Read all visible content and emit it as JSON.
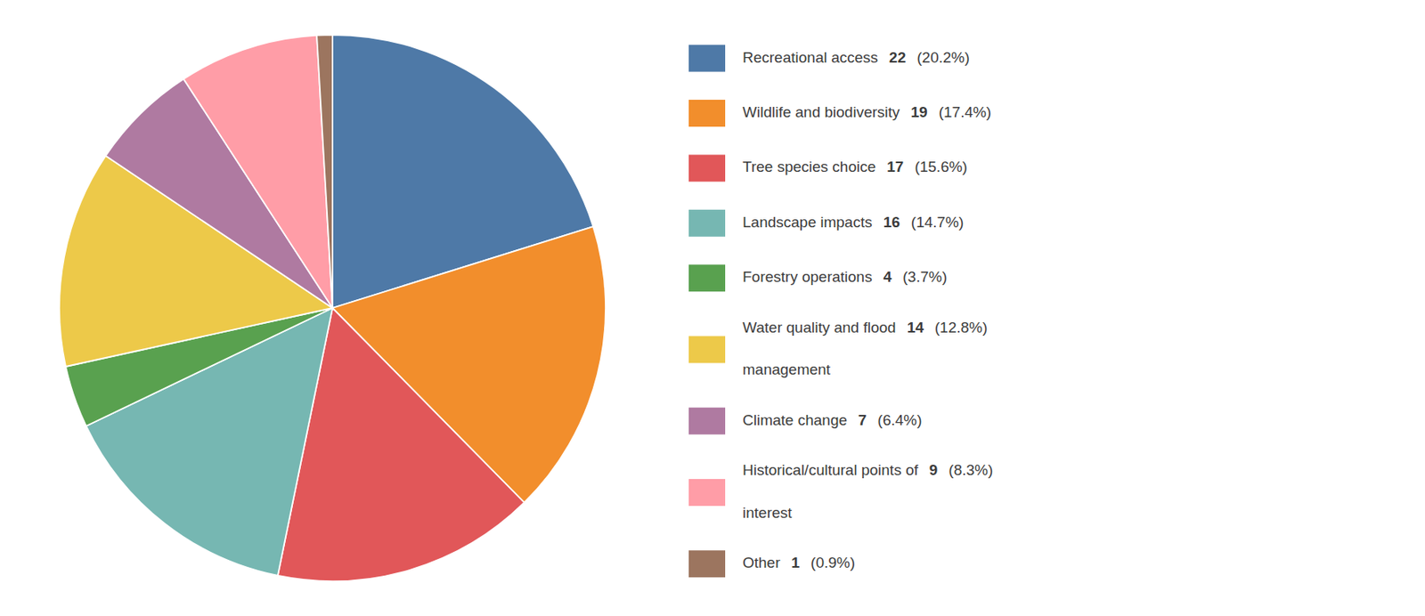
{
  "chart_data": {
    "type": "pie",
    "categories": [
      "Recreational access",
      "Wildlife and biodiversity",
      "Tree species choice",
      "Landscape impacts",
      "Forestry operations",
      "Water quality and flood\nmanagement",
      "Climate change",
      "Historical/cultural points of\ninterest",
      "Other"
    ],
    "values": [
      22,
      19,
      17,
      16,
      4,
      14,
      7,
      9,
      1
    ],
    "percentages": [
      20.2,
      17.4,
      15.6,
      14.7,
      3.7,
      12.8,
      6.4,
      8.3,
      0.9
    ],
    "percentage_labels": [
      "(20.2%)",
      "(17.4%)",
      "(15.6%)",
      "(14.7%)",
      "(3.7%)",
      "(12.8%)",
      "(6.4%)",
      "(8.3%)",
      "(0.9%)"
    ]
  }
}
